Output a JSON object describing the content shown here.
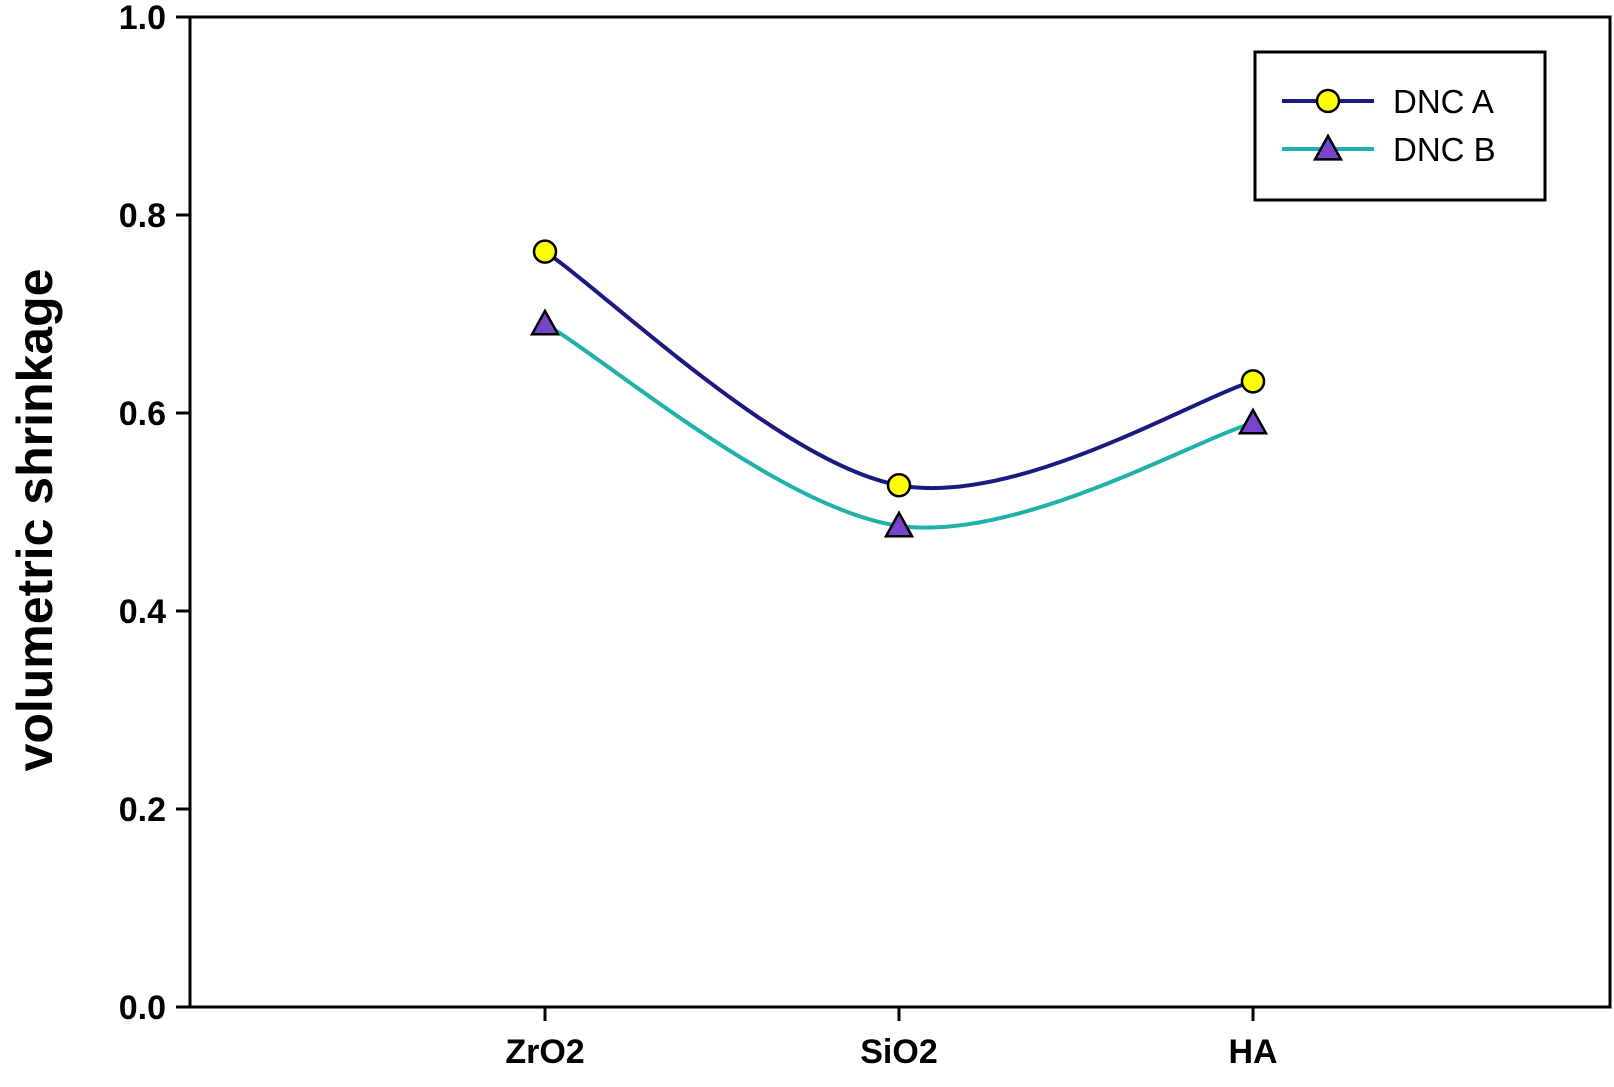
{
  "chart_data": {
    "type": "line",
    "title": "",
    "xlabel": "",
    "ylabel": "volumetric shrinkage",
    "categories": [
      "ZrO2",
      "SiO2",
      "HA"
    ],
    "ylim": [
      0.0,
      1.0
    ],
    "yticks": [
      "0.0",
      "0.2",
      "0.4",
      "0.6",
      "0.8",
      "1.0"
    ],
    "grid": false,
    "smooth": true,
    "legend_position": "top-right",
    "series": [
      {
        "name": "DNC A",
        "values": [
          0.763,
          0.527,
          0.632
        ],
        "line_color": "#1a1a80",
        "marker": "circle",
        "marker_fill": "#ffff00"
      },
      {
        "name": "DNC B",
        "values": [
          0.69,
          0.486,
          0.59
        ],
        "line_color": "#20b2aa",
        "marker": "triangle",
        "marker_fill": "#7744cc"
      }
    ]
  }
}
